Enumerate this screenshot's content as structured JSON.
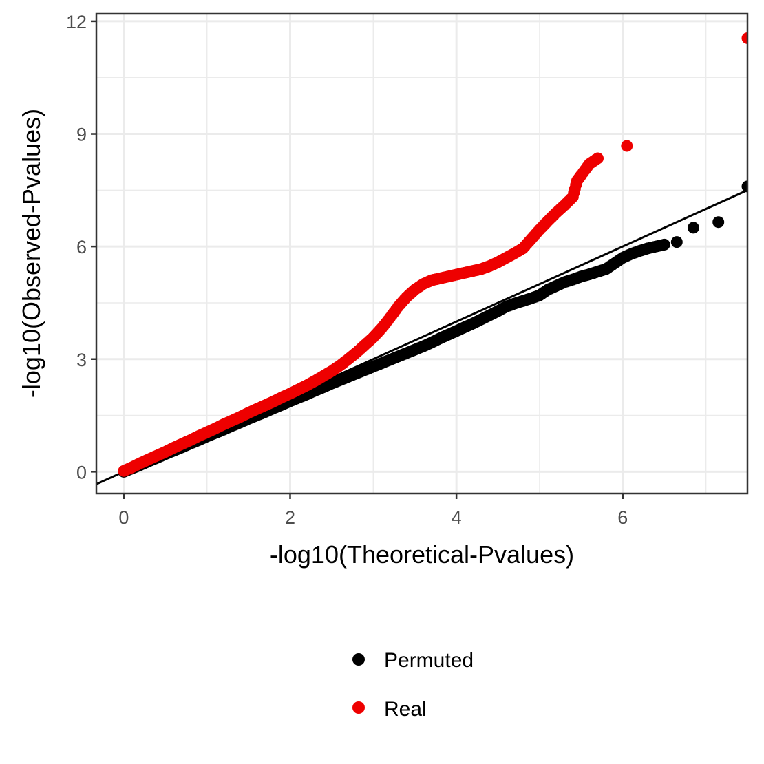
{
  "chart_data": {
    "type": "scatter",
    "title": "",
    "xlabel": "-log10(Theoretical-Pvalues)",
    "ylabel": "-log10(Observed-Pvalues)",
    "xlim": [
      -0.33,
      7.5
    ],
    "ylim": [
      -0.58,
      12.2
    ],
    "x_ticks": [
      0,
      2,
      4,
      6
    ],
    "x_tick_labels": [
      "0",
      "2",
      "4",
      "6"
    ],
    "y_ticks": [
      0,
      3,
      6,
      9,
      12
    ],
    "y_tick_labels": [
      "0",
      "3",
      "6",
      "9",
      "12"
    ],
    "grid": true,
    "legend_position": "bottom",
    "reference_line": {
      "type": "y=x",
      "color": "#000000"
    },
    "series": [
      {
        "name": "Permuted",
        "color": "#000000",
        "points": [
          [
            0.0,
            0.0
          ],
          [
            0.1,
            0.09
          ],
          [
            0.2,
            0.18
          ],
          [
            0.3,
            0.28
          ],
          [
            0.4,
            0.37
          ],
          [
            0.5,
            0.47
          ],
          [
            0.6,
            0.56
          ],
          [
            0.7,
            0.65
          ],
          [
            0.8,
            0.75
          ],
          [
            0.9,
            0.84
          ],
          [
            1.0,
            0.94
          ],
          [
            1.1,
            1.03
          ],
          [
            1.2,
            1.12
          ],
          [
            1.3,
            1.22
          ],
          [
            1.4,
            1.31
          ],
          [
            1.5,
            1.41
          ],
          [
            1.6,
            1.5
          ],
          [
            1.7,
            1.59
          ],
          [
            1.8,
            1.69
          ],
          [
            1.9,
            1.78
          ],
          [
            2.0,
            1.88
          ],
          [
            2.1,
            1.97
          ],
          [
            2.2,
            2.06
          ],
          [
            2.3,
            2.16
          ],
          [
            2.4,
            2.25
          ],
          [
            2.5,
            2.35
          ],
          [
            2.6,
            2.44
          ],
          [
            2.7,
            2.53
          ],
          [
            2.8,
            2.62
          ],
          [
            2.9,
            2.71
          ],
          [
            3.0,
            2.8
          ],
          [
            3.1,
            2.89
          ],
          [
            3.2,
            2.98
          ],
          [
            3.3,
            3.07
          ],
          [
            3.4,
            3.16
          ],
          [
            3.5,
            3.25
          ],
          [
            3.6,
            3.34
          ],
          [
            3.7,
            3.44
          ],
          [
            3.8,
            3.55
          ],
          [
            3.9,
            3.65
          ],
          [
            4.0,
            3.75
          ],
          [
            4.1,
            3.85
          ],
          [
            4.2,
            3.95
          ],
          [
            4.3,
            4.06
          ],
          [
            4.4,
            4.17
          ],
          [
            4.5,
            4.28
          ],
          [
            4.6,
            4.4
          ],
          [
            4.7,
            4.48
          ],
          [
            4.8,
            4.55
          ],
          [
            4.9,
            4.62
          ],
          [
            5.0,
            4.7
          ],
          [
            5.1,
            4.85
          ],
          [
            5.2,
            4.95
          ],
          [
            5.3,
            5.05
          ],
          [
            5.4,
            5.12
          ],
          [
            5.5,
            5.2
          ],
          [
            5.6,
            5.26
          ],
          [
            5.7,
            5.33
          ],
          [
            5.8,
            5.4
          ],
          [
            5.9,
            5.55
          ],
          [
            6.0,
            5.7
          ],
          [
            6.1,
            5.8
          ],
          [
            6.2,
            5.88
          ],
          [
            6.3,
            5.95
          ],
          [
            6.4,
            6.0
          ],
          [
            6.5,
            6.05
          ],
          [
            6.65,
            6.12
          ],
          [
            6.85,
            6.5
          ],
          [
            7.15,
            6.65
          ],
          [
            7.5,
            7.6
          ]
        ]
      },
      {
        "name": "Real",
        "color": "#ee0000",
        "points": [
          [
            0.0,
            0.02
          ],
          [
            0.1,
            0.12
          ],
          [
            0.2,
            0.23
          ],
          [
            0.3,
            0.33
          ],
          [
            0.4,
            0.43
          ],
          [
            0.5,
            0.53
          ],
          [
            0.6,
            0.64
          ],
          [
            0.7,
            0.74
          ],
          [
            0.8,
            0.84
          ],
          [
            0.9,
            0.95
          ],
          [
            1.0,
            1.05
          ],
          [
            1.1,
            1.15
          ],
          [
            1.2,
            1.26
          ],
          [
            1.3,
            1.36
          ],
          [
            1.4,
            1.46
          ],
          [
            1.5,
            1.57
          ],
          [
            1.6,
            1.67
          ],
          [
            1.7,
            1.77
          ],
          [
            1.8,
            1.87
          ],
          [
            1.9,
            1.98
          ],
          [
            2.0,
            2.08
          ],
          [
            2.1,
            2.19
          ],
          [
            2.2,
            2.3
          ],
          [
            2.3,
            2.42
          ],
          [
            2.4,
            2.55
          ],
          [
            2.5,
            2.68
          ],
          [
            2.6,
            2.83
          ],
          [
            2.7,
            3.0
          ],
          [
            2.8,
            3.18
          ],
          [
            2.9,
            3.38
          ],
          [
            3.0,
            3.58
          ],
          [
            3.1,
            3.82
          ],
          [
            3.2,
            4.1
          ],
          [
            3.3,
            4.4
          ],
          [
            3.4,
            4.65
          ],
          [
            3.5,
            4.85
          ],
          [
            3.6,
            5.0
          ],
          [
            3.7,
            5.1
          ],
          [
            3.8,
            5.15
          ],
          [
            3.9,
            5.2
          ],
          [
            4.0,
            5.25
          ],
          [
            4.1,
            5.3
          ],
          [
            4.2,
            5.35
          ],
          [
            4.3,
            5.4
          ],
          [
            4.4,
            5.48
          ],
          [
            4.5,
            5.58
          ],
          [
            4.6,
            5.7
          ],
          [
            4.7,
            5.82
          ],
          [
            4.8,
            5.95
          ],
          [
            4.9,
            6.2
          ],
          [
            5.0,
            6.45
          ],
          [
            5.1,
            6.68
          ],
          [
            5.2,
            6.9
          ],
          [
            5.3,
            7.1
          ],
          [
            5.4,
            7.32
          ],
          [
            5.45,
            7.75
          ],
          [
            5.5,
            7.9
          ],
          [
            5.6,
            8.2
          ],
          [
            5.7,
            8.35
          ],
          [
            6.05,
            8.68
          ],
          [
            7.5,
            11.55
          ]
        ]
      }
    ]
  }
}
